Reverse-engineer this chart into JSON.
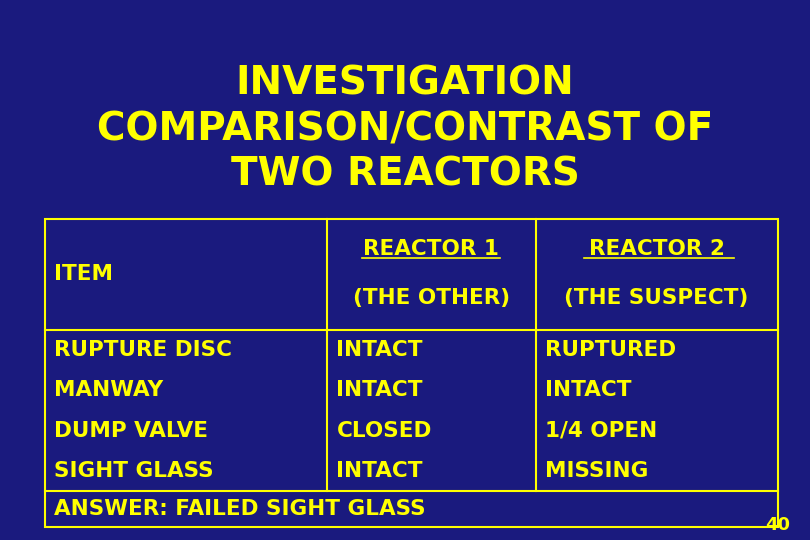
{
  "background_color": "#1a1a7e",
  "title_lines": [
    "INVESTIGATION",
    "COMPARISON/CONTRAST OF",
    "TWO REACTORS"
  ],
  "title_color": "#ffff00",
  "title_fontsize": 28,
  "table_border_color": "#ffff00",
  "table_text_color": "#ffff00",
  "table_fontsize": 15.5,
  "page_number": "40",
  "page_number_color": "#ffff00",
  "col1_header": "ITEM",
  "col2_header": "REACTOR 1",
  "col3_header": "REACTOR 2",
  "col2_subheader": "(THE OTHER)",
  "col3_subheader": "(THE SUSPECT)",
  "rows": [
    [
      "RUPTURE DISC",
      "INTACT",
      "RUPTURED"
    ],
    [
      "MANWAY",
      "INTACT",
      "INTACT"
    ],
    [
      "DUMP VALVE",
      "CLOSED",
      "1/4 OPEN"
    ],
    [
      "SIGHT GLASS",
      "INTACT",
      "MISSING"
    ]
  ],
  "answer_row": "ANSWER: FAILED SIGHT GLASS"
}
